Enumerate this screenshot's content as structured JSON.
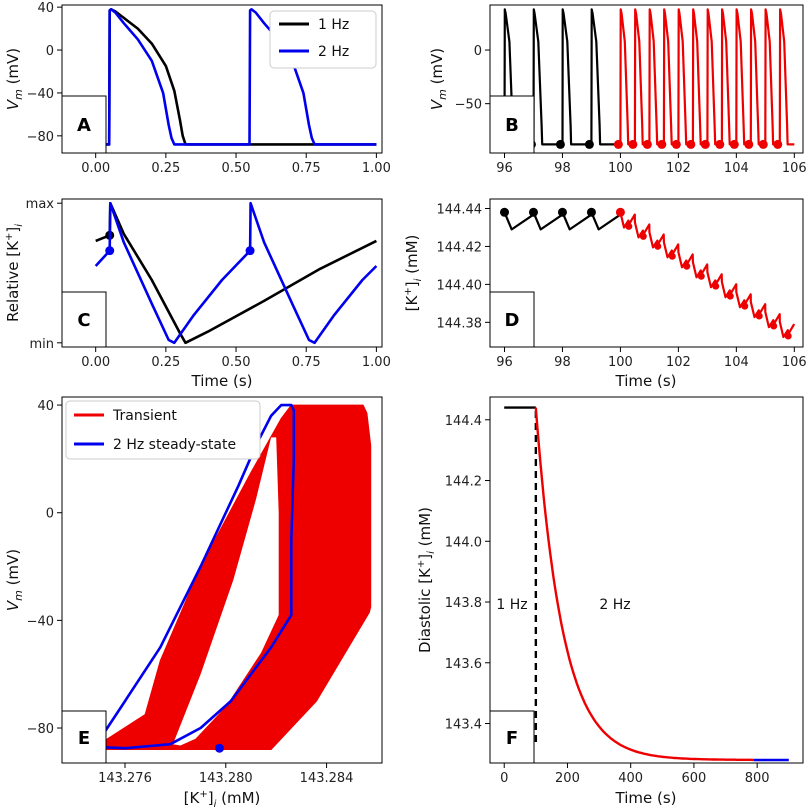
{
  "chart_data": [
    {
      "panel": "A",
      "type": "line",
      "xlabel": "",
      "ylabel": "V_m (mV)",
      "xlim": [
        -0.12,
        1.02
      ],
      "ylim": [
        -96,
        42
      ],
      "xticks": [
        0.0,
        0.25,
        0.5,
        0.75,
        1.0
      ],
      "xtick_labels": [
        "0.00",
        "0.25",
        "0.50",
        "0.75",
        "1.00"
      ],
      "yticks": [
        40,
        0,
        -40,
        -80
      ],
      "ytick_labels": [
        "40",
        "0",
        "−40",
        "−80"
      ],
      "legend": {
        "placement": "top-right",
        "entries": [
          "1 Hz",
          "2 Hz"
        ]
      },
      "series": [
        {
          "name": "1 Hz",
          "color": "#000000",
          "x": [
            0,
            0.048,
            0.05,
            0.055,
            0.07,
            0.1,
            0.15,
            0.2,
            0.25,
            0.28,
            0.3,
            0.31,
            0.32,
            0.33,
            0.4,
            0.6,
            0.8,
            1.0
          ],
          "y": [
            -88,
            -88,
            37,
            38,
            36,
            30,
            20,
            6,
            -15,
            -38,
            -65,
            -80,
            -88,
            -88,
            -88,
            -88,
            -88,
            -88
          ]
        },
        {
          "name": "2 Hz",
          "color": "#0000ee",
          "x": [
            0,
            0.048,
            0.05,
            0.055,
            0.07,
            0.1,
            0.15,
            0.2,
            0.24,
            0.26,
            0.27,
            0.28,
            0.3,
            0.5,
            0.548,
            0.55,
            0.555,
            0.57,
            0.6,
            0.65,
            0.7,
            0.74,
            0.76,
            0.77,
            0.78,
            0.8,
            1.0
          ],
          "y": [
            -88,
            -88,
            37,
            38,
            35,
            25,
            10,
            -10,
            -40,
            -70,
            -82,
            -88,
            -88,
            -88,
            -88,
            37,
            38,
            35,
            25,
            10,
            -10,
            -40,
            -70,
            -82,
            -88,
            -88,
            -88
          ]
        }
      ]
    },
    {
      "panel": "B",
      "type": "line",
      "xlabel": "",
      "ylabel": "V_m (mV)",
      "xlim": [
        95.5,
        106.3
      ],
      "ylim": [
        -96,
        42
      ],
      "xticks": [
        96,
        98,
        100,
        102,
        104,
        106
      ],
      "xtick_labels": [
        "96",
        "98",
        "100",
        "102",
        "104",
        "106"
      ],
      "yticks": [
        0,
        -50
      ],
      "ytick_labels": [
        "0",
        "−50"
      ],
      "series": [
        {
          "name": "1 Hz",
          "color": "#000000",
          "start": 96,
          "period": 1.0,
          "count": 4,
          "apd": 0.28,
          "peak": 38,
          "rest": -88,
          "diastolic_markers": [
            97.0,
            98.0,
            99.0
          ]
        },
        {
          "name": "2 Hz",
          "color": "#ee0000",
          "start": 100,
          "period": 0.5,
          "count": 12,
          "apd": 0.25,
          "peak": 38,
          "rest": -88,
          "diastolic_markers": [
            100.0,
            100.5,
            101.0,
            101.5,
            102.0,
            102.5,
            103.0,
            103.5,
            104.0,
            104.5,
            105.0,
            105.5
          ]
        }
      ]
    },
    {
      "panel": "C",
      "type": "line",
      "xlabel": "Time (s)",
      "ylabel": "Relative [K⁺]ᵢ",
      "xlim": [
        -0.12,
        1.02
      ],
      "ylim": [
        -0.03,
        1.03
      ],
      "xticks": [
        0.0,
        0.25,
        0.5,
        0.75,
        1.0
      ],
      "xtick_labels": [
        "0.00",
        "0.25",
        "0.50",
        "0.75",
        "1.00"
      ],
      "yticks": [
        1,
        0
      ],
      "ytick_labels": [
        "max",
        "min"
      ],
      "series": [
        {
          "name": "1 Hz",
          "color": "#000000",
          "x": [
            0,
            0.05,
            0.052,
            0.1,
            0.2,
            0.3,
            0.32,
            0.4,
            0.6,
            0.8,
            1.0
          ],
          "y": [
            0.73,
            0.77,
            1.0,
            0.78,
            0.45,
            0.07,
            0.0,
            0.08,
            0.3,
            0.53,
            0.73
          ],
          "markers": [
            [
              0.05,
              0.77
            ]
          ]
        },
        {
          "name": "2 Hz",
          "color": "#0000ee",
          "x": [
            0,
            0.05,
            0.052,
            0.1,
            0.2,
            0.26,
            0.28,
            0.35,
            0.45,
            0.55,
            0.552,
            0.6,
            0.7,
            0.76,
            0.78,
            0.85,
            0.95,
            1.0
          ],
          "y": [
            0.55,
            0.66,
            1.0,
            0.72,
            0.28,
            0.02,
            0.0,
            0.2,
            0.45,
            0.66,
            1.0,
            0.72,
            0.28,
            0.02,
            0.0,
            0.2,
            0.45,
            0.55
          ],
          "markers": [
            [
              0.05,
              0.66
            ],
            [
              0.55,
              0.66
            ]
          ]
        }
      ]
    },
    {
      "panel": "D",
      "type": "line",
      "xlabel": "Time (s)",
      "ylabel": "[K⁺]ᵢ (mM)",
      "xlim": [
        95.5,
        106.3
      ],
      "ylim": [
        144.367,
        144.445
      ],
      "xticks": [
        96,
        98,
        100,
        102,
        104,
        106
      ],
      "xtick_labels": [
        "96",
        "98",
        "100",
        "102",
        "104",
        "106"
      ],
      "yticks": [
        144.44,
        144.42,
        144.4,
        144.38
      ],
      "ytick_labels": [
        "144.44",
        "144.42",
        "144.40",
        "144.38"
      ],
      "series": [
        {
          "name": "1 Hz",
          "color": "#000000",
          "start": 96,
          "period": 1.0,
          "count": 4,
          "base": 144.438,
          "drop": 0.009,
          "drift_per_s": 0.0
        },
        {
          "name": "2 Hz",
          "color": "#ee0000",
          "start": 100,
          "period": 0.5,
          "count": 12,
          "base": 144.438,
          "drop": 0.008,
          "drift_per_s": -0.0105
        }
      ],
      "markers_1hz": [
        [
          96,
          144.438
        ],
        [
          97,
          144.438
        ],
        [
          98,
          144.438
        ],
        [
          99,
          144.438
        ]
      ]
    },
    {
      "panel": "E",
      "type": "line",
      "xlabel": "[K⁺]ᵢ (mM)",
      "ylabel": "V_m (mV)",
      "xlim": [
        143.2735,
        143.2862
      ],
      "ylim": [
        -93,
        43
      ],
      "xticks": [
        143.276,
        143.28,
        143.284
      ],
      "xtick_labels": [
        "143.276",
        "143.280",
        "143.284"
      ],
      "yticks": [
        40,
        0,
        -40,
        -80
      ],
      "ytick_labels": [
        "40",
        "0",
        "−40",
        "−80"
      ],
      "legend": {
        "placement": "top-left",
        "entries": [
          "Transient",
          "2 Hz steady-state"
        ]
      },
      "series": [
        {
          "name": "Transient",
          "color": "#ee0000",
          "x": [
            143.2748,
            143.2768,
            143.2774,
            143.279,
            143.281,
            143.2822,
            143.2826,
            143.28545,
            143.2856,
            143.28575,
            143.28575,
            143.2857,
            143.2836,
            143.2818,
            143.275
          ],
          "y": [
            -87,
            -75,
            -55,
            -20,
            15,
            35,
            40,
            40,
            37,
            25,
            -35,
            -37,
            -70,
            -88,
            -88
          ]
        },
        {
          "name": "2 Hz steady-state",
          "color": "#0000ee",
          "x": [
            143.2748,
            143.276,
            143.2774,
            143.279,
            143.2805,
            143.2812,
            143.2818,
            143.2822,
            143.2826,
            143.2827,
            143.2827,
            143.2826,
            143.2826,
            143.2818,
            143.2802,
            143.279,
            143.2778,
            143.276,
            143.2748
          ],
          "y": [
            -87,
            -70,
            -50,
            -20,
            10,
            25,
            36,
            40,
            40,
            38,
            20,
            -10,
            -38,
            -50,
            -70,
            -80,
            -86,
            -87.5,
            -87
          ],
          "markers": [
            [
              143.27975,
              -87.5
            ]
          ]
        }
      ]
    },
    {
      "panel": "F",
      "type": "line",
      "xlabel": "Time (s)",
      "ylabel": "Diastolic [K⁺]ᵢ (mM)",
      "xlim": [
        -45,
        945
      ],
      "ylim": [
        143.27,
        144.475
      ],
      "xticks": [
        0,
        200,
        400,
        600,
        800
      ],
      "xtick_labels": [
        "0",
        "200",
        "400",
        "600",
        "800"
      ],
      "yticks": [
        144.4,
        144.2,
        144.0,
        143.8,
        143.6,
        143.4
      ],
      "ytick_labels": [
        "144.4",
        "144.2",
        "144.0",
        "143.8",
        "143.6",
        "143.4"
      ],
      "vline_x": 100,
      "annotations": [
        "1 Hz",
        "2 Hz"
      ],
      "series": [
        {
          "name": "1 Hz",
          "color": "#000000",
          "x": [
            0,
            100
          ],
          "y": [
            144.44,
            144.44
          ]
        },
        {
          "name": "Transient",
          "color": "#ee0000",
          "model": "exp_decay",
          "t0": 100,
          "t1": 790,
          "y0": 144.44,
          "yinf": 143.28,
          "tau": 85
        },
        {
          "name": "2 Hz steady-state",
          "color": "#0000ee",
          "x": [
            790,
            900
          ],
          "y": [
            143.28,
            143.28
          ]
        }
      ]
    }
  ],
  "labels": {
    "panel_a": "A",
    "panel_b": "B",
    "panel_c": "C",
    "panel_d": "D",
    "panel_e": "E",
    "panel_f": "F",
    "legend_a_1": "1 Hz",
    "legend_a_2": "2 Hz",
    "legend_e_1": "Transient",
    "legend_e_2": "2 Hz steady-state",
    "f_ann_1": "1 Hz",
    "f_ann_2": "2 Hz",
    "ylabel_vm": "V",
    "ylabel_vm_sub": "m",
    "ylabel_vm_unit": " (mV)",
    "ylabel_rel": "Relative [K",
    "ylabel_rel_sup": "+",
    "ylabel_rel_close": "]",
    "ylabel_rel_sub": "i",
    "ylabel_ki": "[K",
    "ylabel_ki_sup": "+",
    "ylabel_ki_close": "]",
    "ylabel_ki_sub": "i",
    "ylabel_ki_unit": " (mM)",
    "ylabel_diast": "Diastolic [K",
    "ylabel_diast_sup": "+",
    "ylabel_diast_close": "]",
    "ylabel_diast_sub": "i",
    "ylabel_diast_unit": " (mM)",
    "xlabel_time": "Time (s)",
    "xlabel_ki": "[K",
    "xlabel_ki_sup": "+",
    "xlabel_ki_close": "]",
    "xlabel_ki_sub": "i",
    "xlabel_ki_unit": " (mM)"
  }
}
